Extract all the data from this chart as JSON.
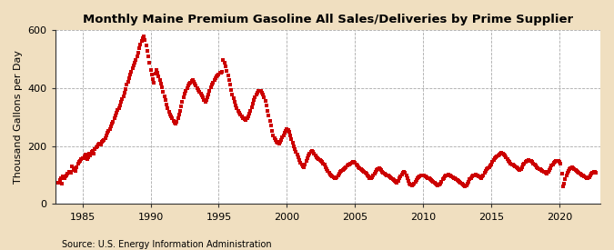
{
  "title": "Monthly Maine Premium Gasoline All Sales/Deliveries by Prime Supplier",
  "ylabel": "Thousand Gallons per Day",
  "source": "Source: U.S. Energy Information Administration",
  "figure_bg": "#f0dfc0",
  "axes_bg": "#ffffff",
  "marker_color": "#cc0000",
  "xlim": [
    1983.0,
    2023.0
  ],
  "ylim": [
    0,
    600
  ],
  "yticks": [
    0,
    200,
    400,
    600
  ],
  "xticks": [
    1985,
    1990,
    1995,
    2000,
    2005,
    2010,
    2015,
    2020
  ],
  "data": [
    [
      1983.25,
      75
    ],
    [
      1983.33,
      82
    ],
    [
      1983.42,
      88
    ],
    [
      1983.5,
      72
    ],
    [
      1983.58,
      95
    ],
    [
      1983.67,
      90
    ],
    [
      1983.75,
      95
    ],
    [
      1983.83,
      100
    ],
    [
      1983.92,
      105
    ],
    [
      1984.0,
      110
    ],
    [
      1984.08,
      112
    ],
    [
      1984.17,
      108
    ],
    [
      1984.25,
      130
    ],
    [
      1984.33,
      118
    ],
    [
      1984.42,
      125
    ],
    [
      1984.5,
      115
    ],
    [
      1984.58,
      128
    ],
    [
      1984.67,
      140
    ],
    [
      1984.75,
      145
    ],
    [
      1984.83,
      148
    ],
    [
      1984.92,
      155
    ],
    [
      1985.0,
      160
    ],
    [
      1985.08,
      158
    ],
    [
      1985.17,
      165
    ],
    [
      1985.25,
      170
    ],
    [
      1985.33,
      155
    ],
    [
      1985.42,
      162
    ],
    [
      1985.5,
      175
    ],
    [
      1985.58,
      168
    ],
    [
      1985.67,
      180
    ],
    [
      1985.75,
      185
    ],
    [
      1985.83,
      175
    ],
    [
      1985.92,
      190
    ],
    [
      1986.0,
      195
    ],
    [
      1986.08,
      200
    ],
    [
      1986.17,
      205
    ],
    [
      1986.25,
      210
    ],
    [
      1986.33,
      205
    ],
    [
      1986.42,
      215
    ],
    [
      1986.5,
      218
    ],
    [
      1986.58,
      222
    ],
    [
      1986.67,
      228
    ],
    [
      1986.75,
      238
    ],
    [
      1986.83,
      245
    ],
    [
      1986.92,
      252
    ],
    [
      1987.0,
      258
    ],
    [
      1987.08,
      268
    ],
    [
      1987.17,
      278
    ],
    [
      1987.25,
      285
    ],
    [
      1987.33,
      295
    ],
    [
      1987.42,
      305
    ],
    [
      1987.5,
      315
    ],
    [
      1987.58,
      325
    ],
    [
      1987.67,
      330
    ],
    [
      1987.75,
      342
    ],
    [
      1987.83,
      352
    ],
    [
      1987.92,
      362
    ],
    [
      1988.0,
      372
    ],
    [
      1988.08,
      385
    ],
    [
      1988.17,
      398
    ],
    [
      1988.25,
      412
    ],
    [
      1988.33,
      422
    ],
    [
      1988.42,
      435
    ],
    [
      1988.5,
      448
    ],
    [
      1988.58,
      458
    ],
    [
      1988.67,
      468
    ],
    [
      1988.75,
      478
    ],
    [
      1988.83,
      488
    ],
    [
      1988.92,
      498
    ],
    [
      1989.0,
      510
    ],
    [
      1989.08,
      522
    ],
    [
      1989.17,
      538
    ],
    [
      1989.25,
      552
    ],
    [
      1989.33,
      562
    ],
    [
      1989.42,
      572
    ],
    [
      1989.5,
      580
    ],
    [
      1989.58,
      565
    ],
    [
      1989.67,
      548
    ],
    [
      1989.75,
      530
    ],
    [
      1989.83,
      510
    ],
    [
      1989.92,
      488
    ],
    [
      1990.0,
      462
    ],
    [
      1990.08,
      448
    ],
    [
      1990.17,
      432
    ],
    [
      1990.25,
      418
    ],
    [
      1990.33,
      450
    ],
    [
      1990.42,
      462
    ],
    [
      1990.5,
      452
    ],
    [
      1990.58,
      440
    ],
    [
      1990.67,
      428
    ],
    [
      1990.75,
      415
    ],
    [
      1990.83,
      402
    ],
    [
      1990.92,
      388
    ],
    [
      1991.0,
      372
    ],
    [
      1991.08,
      358
    ],
    [
      1991.17,
      345
    ],
    [
      1991.25,
      332
    ],
    [
      1991.33,
      320
    ],
    [
      1991.42,
      310
    ],
    [
      1991.5,
      302
    ],
    [
      1991.58,
      295
    ],
    [
      1991.67,
      288
    ],
    [
      1991.75,
      282
    ],
    [
      1991.83,
      278
    ],
    [
      1991.92,
      285
    ],
    [
      1992.0,
      295
    ],
    [
      1992.08,
      308
    ],
    [
      1992.17,
      322
    ],
    [
      1992.25,
      338
    ],
    [
      1992.33,
      352
    ],
    [
      1992.42,
      368
    ],
    [
      1992.5,
      382
    ],
    [
      1992.58,
      392
    ],
    [
      1992.67,
      400
    ],
    [
      1992.75,
      408
    ],
    [
      1992.83,
      415
    ],
    [
      1992.92,
      420
    ],
    [
      1993.0,
      425
    ],
    [
      1993.08,
      428
    ],
    [
      1993.17,
      422
    ],
    [
      1993.25,
      415
    ],
    [
      1993.33,
      408
    ],
    [
      1993.42,
      400
    ],
    [
      1993.5,
      395
    ],
    [
      1993.58,
      388
    ],
    [
      1993.67,
      382
    ],
    [
      1993.75,
      375
    ],
    [
      1993.83,
      368
    ],
    [
      1993.92,
      360
    ],
    [
      1994.0,
      352
    ],
    [
      1994.08,
      358
    ],
    [
      1994.17,
      368
    ],
    [
      1994.25,
      378
    ],
    [
      1994.33,
      390
    ],
    [
      1994.42,
      402
    ],
    [
      1994.5,
      412
    ],
    [
      1994.58,
      420
    ],
    [
      1994.67,
      428
    ],
    [
      1994.75,
      435
    ],
    [
      1994.83,
      440
    ],
    [
      1994.92,
      445
    ],
    [
      1995.0,
      448
    ],
    [
      1995.08,
      452
    ],
    [
      1995.17,
      455
    ],
    [
      1995.25,
      458
    ],
    [
      1995.33,
      498
    ],
    [
      1995.42,
      488
    ],
    [
      1995.5,
      475
    ],
    [
      1995.58,
      460
    ],
    [
      1995.67,
      445
    ],
    [
      1995.75,
      428
    ],
    [
      1995.83,
      412
    ],
    [
      1995.92,
      395
    ],
    [
      1996.0,
      378
    ],
    [
      1996.08,
      365
    ],
    [
      1996.17,
      352
    ],
    [
      1996.25,
      340
    ],
    [
      1996.33,
      330
    ],
    [
      1996.42,
      322
    ],
    [
      1996.5,
      315
    ],
    [
      1996.58,
      308
    ],
    [
      1996.67,
      302
    ],
    [
      1996.75,
      298
    ],
    [
      1996.83,
      295
    ],
    [
      1996.92,
      292
    ],
    [
      1997.0,
      290
    ],
    [
      1997.08,
      295
    ],
    [
      1997.17,
      302
    ],
    [
      1997.25,
      312
    ],
    [
      1997.33,
      322
    ],
    [
      1997.42,
      335
    ],
    [
      1997.5,
      348
    ],
    [
      1997.58,
      360
    ],
    [
      1997.67,
      370
    ],
    [
      1997.75,
      378
    ],
    [
      1997.83,
      385
    ],
    [
      1997.92,
      390
    ],
    [
      1998.0,
      392
    ],
    [
      1998.08,
      390
    ],
    [
      1998.17,
      385
    ],
    [
      1998.25,
      378
    ],
    [
      1998.33,
      368
    ],
    [
      1998.42,
      355
    ],
    [
      1998.5,
      340
    ],
    [
      1998.58,
      322
    ],
    [
      1998.67,
      305
    ],
    [
      1998.75,
      288
    ],
    [
      1998.83,
      270
    ],
    [
      1998.92,
      252
    ],
    [
      1999.0,
      238
    ],
    [
      1999.08,
      228
    ],
    [
      1999.17,
      220
    ],
    [
      1999.25,
      215
    ],
    [
      1999.33,
      212
    ],
    [
      1999.42,
      210
    ],
    [
      1999.5,
      215
    ],
    [
      1999.58,
      222
    ],
    [
      1999.67,
      230
    ],
    [
      1999.75,
      238
    ],
    [
      1999.83,
      245
    ],
    [
      1999.92,
      252
    ],
    [
      2000.0,
      258
    ],
    [
      2000.08,
      255
    ],
    [
      2000.17,
      248
    ],
    [
      2000.25,
      238
    ],
    [
      2000.33,
      225
    ],
    [
      2000.42,
      212
    ],
    [
      2000.5,
      200
    ],
    [
      2000.58,
      190
    ],
    [
      2000.67,
      180
    ],
    [
      2000.75,
      172
    ],
    [
      2000.83,
      162
    ],
    [
      2000.92,
      152
    ],
    [
      2001.0,
      142
    ],
    [
      2001.08,
      135
    ],
    [
      2001.17,
      130
    ],
    [
      2001.25,
      128
    ],
    [
      2001.33,
      138
    ],
    [
      2001.42,
      148
    ],
    [
      2001.5,
      158
    ],
    [
      2001.58,
      168
    ],
    [
      2001.67,
      175
    ],
    [
      2001.75,
      180
    ],
    [
      2001.83,
      182
    ],
    [
      2001.92,
      180
    ],
    [
      2002.0,
      175
    ],
    [
      2002.08,
      168
    ],
    [
      2002.17,
      162
    ],
    [
      2002.25,
      158
    ],
    [
      2002.33,
      155
    ],
    [
      2002.42,
      152
    ],
    [
      2002.5,
      148
    ],
    [
      2002.58,
      145
    ],
    [
      2002.67,
      140
    ],
    [
      2002.75,
      135
    ],
    [
      2002.83,
      128
    ],
    [
      2002.92,
      122
    ],
    [
      2003.0,
      115
    ],
    [
      2003.08,
      108
    ],
    [
      2003.17,
      102
    ],
    [
      2003.25,
      98
    ],
    [
      2003.33,
      95
    ],
    [
      2003.42,
      92
    ],
    [
      2003.5,
      90
    ],
    [
      2003.58,
      88
    ],
    [
      2003.67,
      92
    ],
    [
      2003.75,
      98
    ],
    [
      2003.83,
      105
    ],
    [
      2003.92,
      110
    ],
    [
      2004.0,
      115
    ],
    [
      2004.08,
      118
    ],
    [
      2004.17,
      122
    ],
    [
      2004.25,
      125
    ],
    [
      2004.33,
      128
    ],
    [
      2004.42,
      132
    ],
    [
      2004.5,
      135
    ],
    [
      2004.58,
      138
    ],
    [
      2004.67,
      140
    ],
    [
      2004.75,
      142
    ],
    [
      2004.83,
      145
    ],
    [
      2004.92,
      145
    ],
    [
      2005.0,
      142
    ],
    [
      2005.08,
      138
    ],
    [
      2005.17,
      132
    ],
    [
      2005.25,
      128
    ],
    [
      2005.33,
      125
    ],
    [
      2005.42,
      120
    ],
    [
      2005.5,
      118
    ],
    [
      2005.58,
      115
    ],
    [
      2005.67,
      112
    ],
    [
      2005.75,
      108
    ],
    [
      2005.83,
      105
    ],
    [
      2005.92,
      100
    ],
    [
      2006.0,
      95
    ],
    [
      2006.08,
      90
    ],
    [
      2006.17,
      88
    ],
    [
      2006.25,
      92
    ],
    [
      2006.33,
      98
    ],
    [
      2006.42,
      105
    ],
    [
      2006.5,
      112
    ],
    [
      2006.58,
      118
    ],
    [
      2006.67,
      122
    ],
    [
      2006.75,
      125
    ],
    [
      2006.83,
      122
    ],
    [
      2006.92,
      118
    ],
    [
      2007.0,
      112
    ],
    [
      2007.08,
      108
    ],
    [
      2007.17,
      105
    ],
    [
      2007.25,
      102
    ],
    [
      2007.33,
      100
    ],
    [
      2007.42,
      98
    ],
    [
      2007.5,
      95
    ],
    [
      2007.58,
      92
    ],
    [
      2007.67,
      88
    ],
    [
      2007.75,
      85
    ],
    [
      2007.83,
      82
    ],
    [
      2007.92,
      80
    ],
    [
      2008.0,
      78
    ],
    [
      2008.08,
      75
    ],
    [
      2008.17,
      80
    ],
    [
      2008.25,
      88
    ],
    [
      2008.33,
      95
    ],
    [
      2008.42,
      102
    ],
    [
      2008.5,
      108
    ],
    [
      2008.58,
      112
    ],
    [
      2008.67,
      108
    ],
    [
      2008.75,
      100
    ],
    [
      2008.83,
      90
    ],
    [
      2008.92,
      80
    ],
    [
      2009.0,
      72
    ],
    [
      2009.08,
      68
    ],
    [
      2009.17,
      65
    ],
    [
      2009.25,
      68
    ],
    [
      2009.33,
      72
    ],
    [
      2009.42,
      78
    ],
    [
      2009.5,
      82
    ],
    [
      2009.58,
      88
    ],
    [
      2009.67,
      92
    ],
    [
      2009.75,
      95
    ],
    [
      2009.83,
      98
    ],
    [
      2009.92,
      100
    ],
    [
      2010.0,
      100
    ],
    [
      2010.08,
      98
    ],
    [
      2010.17,
      95
    ],
    [
      2010.25,
      92
    ],
    [
      2010.33,
      90
    ],
    [
      2010.42,
      88
    ],
    [
      2010.5,
      85
    ],
    [
      2010.58,
      82
    ],
    [
      2010.67,
      80
    ],
    [
      2010.75,
      78
    ],
    [
      2010.83,
      75
    ],
    [
      2010.92,
      72
    ],
    [
      2011.0,
      68
    ],
    [
      2011.08,
      65
    ],
    [
      2011.17,
      68
    ],
    [
      2011.25,
      72
    ],
    [
      2011.33,
      78
    ],
    [
      2011.42,
      85
    ],
    [
      2011.5,
      90
    ],
    [
      2011.58,
      95
    ],
    [
      2011.67,
      98
    ],
    [
      2011.75,
      100
    ],
    [
      2011.83,
      102
    ],
    [
      2011.92,
      100
    ],
    [
      2012.0,
      98
    ],
    [
      2012.08,
      95
    ],
    [
      2012.17,
      92
    ],
    [
      2012.25,
      90
    ],
    [
      2012.33,
      88
    ],
    [
      2012.42,
      85
    ],
    [
      2012.5,
      82
    ],
    [
      2012.58,
      80
    ],
    [
      2012.67,
      78
    ],
    [
      2012.75,
      75
    ],
    [
      2012.83,
      72
    ],
    [
      2012.92,
      68
    ],
    [
      2013.0,
      65
    ],
    [
      2013.08,
      62
    ],
    [
      2013.17,
      65
    ],
    [
      2013.25,
      70
    ],
    [
      2013.33,
      78
    ],
    [
      2013.42,
      85
    ],
    [
      2013.5,
      90
    ],
    [
      2013.58,
      95
    ],
    [
      2013.67,
      98
    ],
    [
      2013.75,
      100
    ],
    [
      2013.83,
      102
    ],
    [
      2013.92,
      100
    ],
    [
      2014.0,
      98
    ],
    [
      2014.08,
      95
    ],
    [
      2014.17,
      92
    ],
    [
      2014.25,
      90
    ],
    [
      2014.33,
      95
    ],
    [
      2014.42,
      100
    ],
    [
      2014.5,
      108
    ],
    [
      2014.58,
      115
    ],
    [
      2014.67,
      120
    ],
    [
      2014.75,
      125
    ],
    [
      2014.83,
      128
    ],
    [
      2014.92,
      132
    ],
    [
      2015.0,
      138
    ],
    [
      2015.08,
      145
    ],
    [
      2015.17,
      152
    ],
    [
      2015.25,
      158
    ],
    [
      2015.33,
      162
    ],
    [
      2015.42,
      165
    ],
    [
      2015.5,
      168
    ],
    [
      2015.58,
      172
    ],
    [
      2015.67,
      175
    ],
    [
      2015.75,
      178
    ],
    [
      2015.83,
      175
    ],
    [
      2015.92,
      172
    ],
    [
      2016.0,
      168
    ],
    [
      2016.08,
      162
    ],
    [
      2016.17,
      155
    ],
    [
      2016.25,
      150
    ],
    [
      2016.33,
      145
    ],
    [
      2016.42,
      140
    ],
    [
      2016.5,
      138
    ],
    [
      2016.58,
      135
    ],
    [
      2016.67,
      132
    ],
    [
      2016.75,
      130
    ],
    [
      2016.83,
      128
    ],
    [
      2016.92,
      125
    ],
    [
      2017.0,
      122
    ],
    [
      2017.08,
      118
    ],
    [
      2017.17,
      122
    ],
    [
      2017.25,
      128
    ],
    [
      2017.33,
      135
    ],
    [
      2017.42,
      140
    ],
    [
      2017.5,
      145
    ],
    [
      2017.58,
      148
    ],
    [
      2017.67,
      150
    ],
    [
      2017.75,
      152
    ],
    [
      2017.83,
      150
    ],
    [
      2017.92,
      148
    ],
    [
      2018.0,
      145
    ],
    [
      2018.08,
      140
    ],
    [
      2018.17,
      135
    ],
    [
      2018.25,
      132
    ],
    [
      2018.33,
      128
    ],
    [
      2018.42,
      125
    ],
    [
      2018.5,
      122
    ],
    [
      2018.58,
      120
    ],
    [
      2018.67,
      118
    ],
    [
      2018.75,
      115
    ],
    [
      2018.83,
      112
    ],
    [
      2018.92,
      110
    ],
    [
      2019.0,
      108
    ],
    [
      2019.08,
      105
    ],
    [
      2019.17,
      110
    ],
    [
      2019.25,
      118
    ],
    [
      2019.33,
      125
    ],
    [
      2019.42,
      132
    ],
    [
      2019.5,
      138
    ],
    [
      2019.58,
      142
    ],
    [
      2019.67,
      145
    ],
    [
      2019.75,
      148
    ],
    [
      2019.83,
      150
    ],
    [
      2019.92,
      148
    ],
    [
      2020.0,
      145
    ],
    [
      2020.08,
      140
    ],
    [
      2020.17,
      105
    ],
    [
      2020.25,
      62
    ],
    [
      2020.33,
      72
    ],
    [
      2020.42,
      85
    ],
    [
      2020.5,
      98
    ],
    [
      2020.58,
      108
    ],
    [
      2020.67,
      115
    ],
    [
      2020.75,
      120
    ],
    [
      2020.83,
      125
    ],
    [
      2020.92,
      128
    ],
    [
      2021.0,
      125
    ],
    [
      2021.08,
      120
    ],
    [
      2021.17,
      118
    ],
    [
      2021.25,
      115
    ],
    [
      2021.33,
      112
    ],
    [
      2021.42,
      108
    ],
    [
      2021.5,
      105
    ],
    [
      2021.58,
      102
    ],
    [
      2021.67,
      100
    ],
    [
      2021.75,
      98
    ],
    [
      2021.83,
      95
    ],
    [
      2021.92,
      92
    ],
    [
      2022.0,
      90
    ],
    [
      2022.08,
      88
    ],
    [
      2022.17,
      92
    ],
    [
      2022.25,
      98
    ],
    [
      2022.33,
      105
    ],
    [
      2022.42,
      108
    ],
    [
      2022.5,
      110
    ],
    [
      2022.58,
      112
    ],
    [
      2022.67,
      108
    ]
  ]
}
